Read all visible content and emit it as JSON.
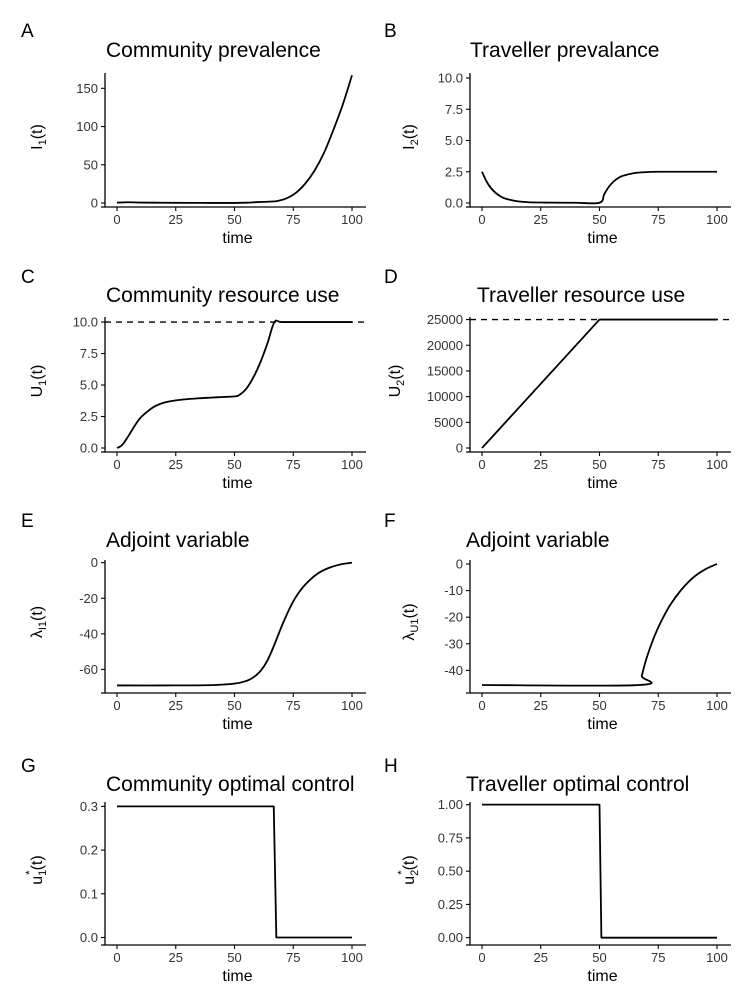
{
  "chart_data": [
    {
      "panel": "A",
      "type": "line",
      "title": "Community prevalence",
      "xlabel": "time",
      "ylabel": {
        "base": "I",
        "sub": "1",
        "sup": "",
        "tail": "(t)"
      },
      "xlim": [
        0,
        100
      ],
      "ylim": [
        0,
        170
      ],
      "xticks": [
        0,
        25,
        50,
        75,
        100
      ],
      "yticks": [
        0,
        50,
        100,
        150
      ],
      "yticklabels": [
        "0",
        "50",
        "100",
        "150"
      ],
      "hline": null,
      "series": [
        {
          "x": [
            0,
            5,
            10,
            20,
            30,
            40,
            50,
            55,
            60,
            65,
            68,
            72,
            76,
            80,
            84,
            88,
            92,
            96,
            100
          ],
          "y": [
            0.5,
            1.0,
            0.6,
            0.3,
            0.2,
            0.1,
            0.1,
            0.4,
            1.2,
            1.8,
            2.5,
            6,
            13,
            25,
            42,
            65,
            95,
            128,
            167
          ]
        }
      ]
    },
    {
      "panel": "B",
      "type": "line",
      "title": "Traveller prevalance",
      "xlabel": "time",
      "ylabel": {
        "base": "I",
        "sub": "2",
        "sup": "",
        "tail": "(t)"
      },
      "xlim": [
        0,
        100
      ],
      "ylim": [
        0,
        10.4
      ],
      "xticks": [
        0,
        25,
        50,
        75,
        100
      ],
      "yticks": [
        0,
        2.5,
        5,
        7.5,
        10
      ],
      "yticklabels": [
        "0.0",
        "2.5",
        "5.0",
        "7.5",
        "10.0"
      ],
      "hline": null,
      "series": [
        {
          "x": [
            0,
            2,
            4,
            6,
            8,
            10,
            15,
            20,
            25,
            30,
            40,
            50,
            52,
            54,
            56,
            58,
            60,
            65,
            70,
            75,
            80,
            90,
            100
          ],
          "y": [
            2.5,
            1.7,
            1.15,
            0.78,
            0.52,
            0.35,
            0.14,
            0.06,
            0.04,
            0.03,
            0.02,
            0.02,
            0.7,
            1.3,
            1.72,
            2.0,
            2.18,
            2.4,
            2.47,
            2.5,
            2.5,
            2.5,
            2.5
          ]
        }
      ]
    },
    {
      "panel": "C",
      "type": "line",
      "title": "Community resource use",
      "xlabel": "time",
      "ylabel": {
        "base": "U",
        "sub": "1",
        "sup": "",
        "tail": "(t)"
      },
      "xlim": [
        0,
        100
      ],
      "ylim": [
        0,
        10.4
      ],
      "xticks": [
        0,
        25,
        50,
        75,
        100
      ],
      "yticks": [
        0,
        2.5,
        5,
        7.5,
        10
      ],
      "yticklabels": [
        "0.0",
        "2.5",
        "5.0",
        "7.5",
        "10.0"
      ],
      "hline": 10,
      "series": [
        {
          "x": [
            0,
            2,
            4,
            6,
            8,
            10,
            13,
            16,
            20,
            25,
            30,
            35,
            40,
            45,
            50,
            52,
            55,
            58,
            61,
            64,
            67,
            70,
            80,
            90,
            100
          ],
          "y": [
            0,
            0.2,
            0.7,
            1.3,
            1.9,
            2.4,
            2.9,
            3.3,
            3.6,
            3.78,
            3.88,
            3.95,
            4.0,
            4.05,
            4.1,
            4.2,
            4.7,
            5.6,
            6.8,
            8.3,
            10,
            10,
            10,
            10,
            10
          ]
        }
      ]
    },
    {
      "panel": "D",
      "type": "line",
      "title": "Traveller resource use",
      "xlabel": "time",
      "ylabel": {
        "base": "U",
        "sub": "2",
        "sup": "",
        "tail": "(t)"
      },
      "xlim": [
        0,
        100
      ],
      "ylim": [
        0,
        25500
      ],
      "xticks": [
        0,
        25,
        50,
        75,
        100
      ],
      "yticks": [
        0,
        5000,
        10000,
        15000,
        20000,
        25000
      ],
      "yticklabels": [
        "0",
        "5000",
        "10000",
        "15000",
        "20000",
        "25000"
      ],
      "hline": 25000,
      "series": [
        {
          "x": [
            0,
            50,
            100
          ],
          "y": [
            0,
            25000,
            25000
          ]
        }
      ]
    },
    {
      "panel": "E",
      "type": "line",
      "title": "Adjoint variable",
      "xlabel": "time",
      "ylabel": {
        "base": "λ",
        "sub": "I1",
        "sup": "",
        "tail": "(t)"
      },
      "xlim": [
        0,
        100
      ],
      "ylim": [
        -71,
        1.5
      ],
      "xticks": [
        0,
        25,
        50,
        75,
        100
      ],
      "yticks": [
        -60,
        -40,
        -20,
        0
      ],
      "yticklabels": [
        "-60",
        "-40",
        "-20",
        "0"
      ],
      "hline": null,
      "series": [
        {
          "x": [
            0,
            20,
            40,
            50,
            55,
            58,
            61,
            64,
            67,
            70,
            73,
            76,
            80,
            85,
            90,
            95,
            100
          ],
          "y": [
            -69,
            -69,
            -68.8,
            -68,
            -66.5,
            -64.5,
            -61,
            -55,
            -46,
            -36,
            -27,
            -19.5,
            -12.5,
            -6.5,
            -3,
            -1,
            0
          ]
        }
      ]
    },
    {
      "panel": "F",
      "type": "line",
      "title": "Adjoint variable",
      "xlabel": "time",
      "ylabel": {
        "base": "λ",
        "sub": "U1",
        "sup": "",
        "tail": "(t)"
      },
      "xlim": [
        0,
        100
      ],
      "ylim": [
        -47,
        1.5
      ],
      "xticks": [
        0,
        25,
        50,
        75,
        100
      ],
      "yticks": [
        -40,
        -30,
        -20,
        -10,
        0
      ],
      "yticklabels": [
        "-40",
        "-30",
        "-20",
        "-10",
        "0"
      ],
      "hline": null,
      "series": [
        {
          "x": [
            0,
            67,
            68,
            70,
            73,
            76,
            80,
            85,
            90,
            95,
            100
          ],
          "y": [
            -45.5,
            -45.5,
            -42,
            -35.5,
            -28,
            -22,
            -15.5,
            -9.5,
            -5,
            -2,
            0
          ]
        }
      ]
    },
    {
      "panel": "G",
      "type": "line",
      "title": "Community optimal control",
      "xlabel": "time",
      "ylabel": {
        "base": "u",
        "sub": "1",
        "sup": "*",
        "tail": "(t)"
      },
      "xlim": [
        0,
        100
      ],
      "ylim": [
        -0.008,
        0.31
      ],
      "xticks": [
        0,
        25,
        50,
        75,
        100
      ],
      "yticks": [
        0,
        0.1,
        0.2,
        0.3
      ],
      "yticklabels": [
        "0.0",
        "0.1",
        "0.2",
        "0.3"
      ],
      "hline": null,
      "series": [
        {
          "x": [
            0,
            66.7,
            67.8,
            100
          ],
          "y": [
            0.3,
            0.3,
            0,
            0
          ]
        }
      ]
    },
    {
      "panel": "H",
      "type": "line",
      "title": "Traveller optimal control",
      "xlabel": "time",
      "ylabel": {
        "base": "u",
        "sub": "2",
        "sup": "*",
        "tail": "(t)"
      },
      "xlim": [
        0,
        100
      ],
      "ylim": [
        -0.025,
        1.02
      ],
      "xticks": [
        0,
        25,
        50,
        75,
        100
      ],
      "yticks": [
        0,
        0.25,
        0.5,
        0.75,
        1
      ],
      "yticklabels": [
        "0.00",
        "0.25",
        "0.50",
        "0.75",
        "1.00"
      ],
      "hline": null,
      "series": [
        {
          "x": [
            0,
            50,
            50.8,
            100
          ],
          "y": [
            1,
            1,
            0,
            0
          ]
        }
      ]
    }
  ],
  "colors": {
    "line": "#000000",
    "axis": "#000000",
    "tick_text": "#333333"
  }
}
